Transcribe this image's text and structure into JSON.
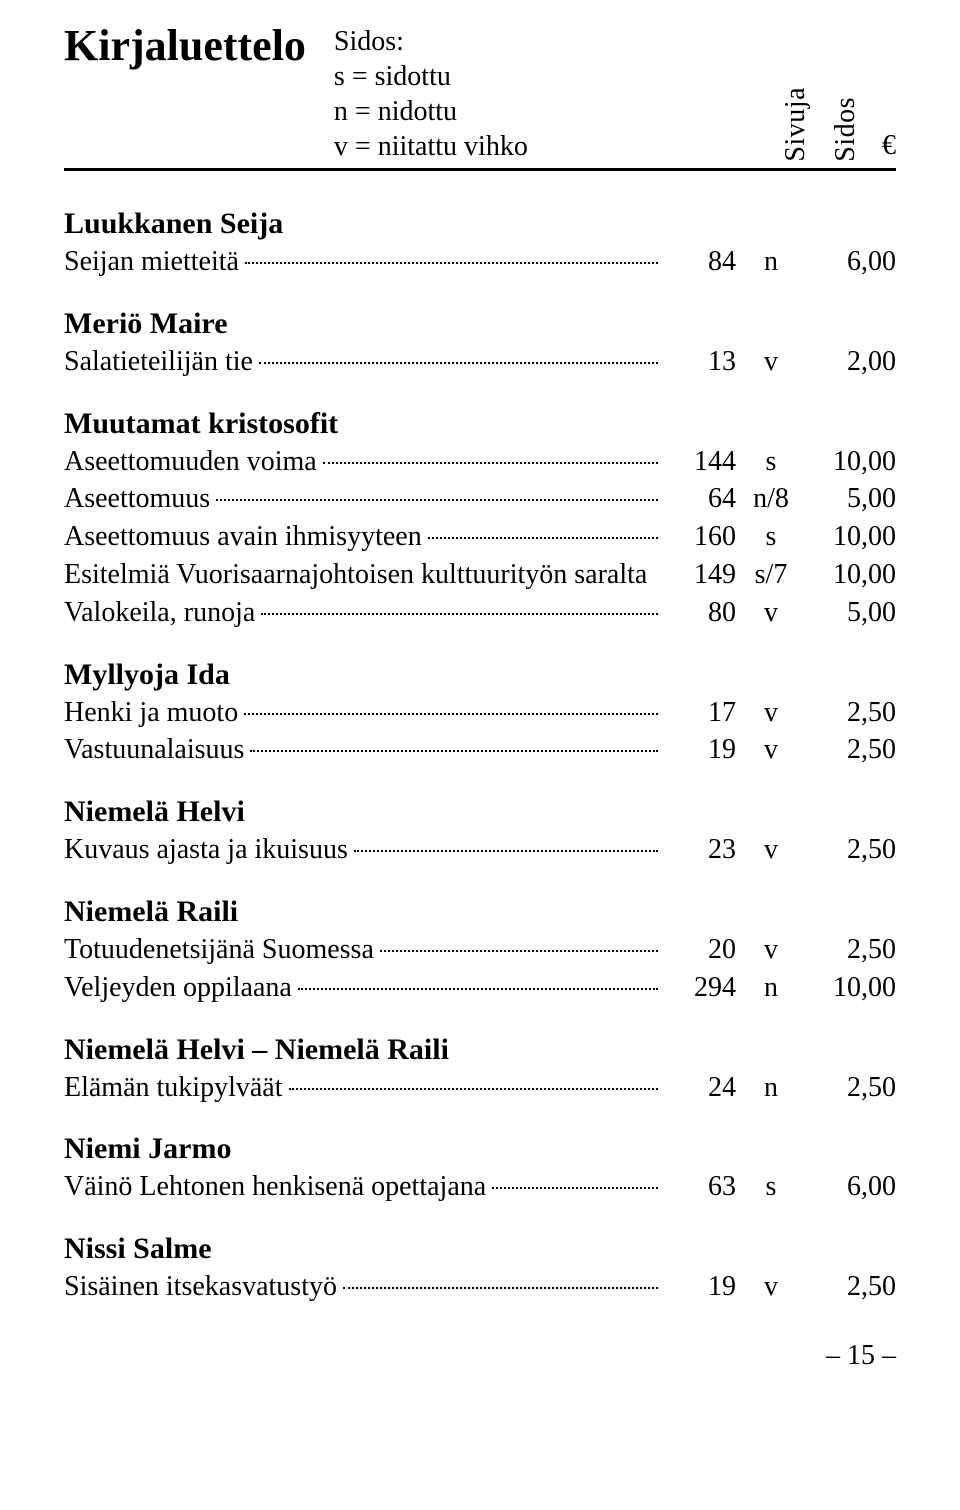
{
  "header": {
    "title": "Kirjaluettelo",
    "legend_heading": "Sidos:",
    "legend_lines": [
      "s = sidottu",
      "n = nidottu",
      "v = niitattu vihko"
    ],
    "columns": {
      "sivuja": "Sivuja",
      "sidos": "Sidos",
      "euro": "€"
    }
  },
  "groups": [
    {
      "name": "Luukkanen Seija",
      "entries": [
        {
          "title": "Seijan mietteitä",
          "sivuja": "84",
          "sidos": "n",
          "price": "6,00"
        }
      ]
    },
    {
      "name": "Meriö Maire",
      "entries": [
        {
          "title": "Salatieteilijän tie",
          "sivuja": "13",
          "sidos": "v",
          "price": "2,00"
        }
      ]
    },
    {
      "name": "Muutamat kristosofit",
      "entries": [
        {
          "title": "Aseettomuuden voima",
          "sivuja": "144",
          "sidos": "s",
          "price": "10,00"
        },
        {
          "title": "Aseettomuus",
          "sivuja": "64",
          "sidos": "n/8",
          "price": "5,00"
        },
        {
          "title": "Aseettomuus avain ihmisyyteen",
          "sivuja": "160",
          "sidos": "s",
          "price": "10,00"
        },
        {
          "title": "Esitelmiä Vuorisaarnajohtoisen kulttuurityön saralta",
          "sivuja": "149",
          "sidos": "s/7",
          "price": "10,00",
          "noleader": true
        },
        {
          "title": "Valokeila, runoja",
          "sivuja": "80",
          "sidos": "v",
          "price": "5,00"
        }
      ]
    },
    {
      "name": "Myllyoja Ida",
      "entries": [
        {
          "title": "Henki ja muoto",
          "sivuja": "17",
          "sidos": "v",
          "price": "2,50"
        },
        {
          "title": "Vastuunalaisuus",
          "sivuja": "19",
          "sidos": "v",
          "price": "2,50"
        }
      ]
    },
    {
      "name": "Niemelä Helvi",
      "entries": [
        {
          "title": "Kuvaus ajasta ja ikuisuus",
          "sivuja": "23",
          "sidos": "v",
          "price": "2,50"
        }
      ]
    },
    {
      "name": "Niemelä Raili",
      "entries": [
        {
          "title": "Totuudenetsijänä Suomessa",
          "sivuja": "20",
          "sidos": "v",
          "price": "2,50"
        },
        {
          "title": "Veljeyden oppilaana",
          "sivuja": "294",
          "sidos": "n",
          "price": "10,00"
        }
      ]
    },
    {
      "name": "Niemelä Helvi – Niemelä Raili",
      "entries": [
        {
          "title": "Elämän tukipylväät",
          "sivuja": "24",
          "sidos": "n",
          "price": "2,50"
        }
      ]
    },
    {
      "name": "Niemi Jarmo",
      "entries": [
        {
          "title": "Väinö Lehtonen henkisenä opettajana",
          "sivuja": "63",
          "sidos": "s",
          "price": "6,00"
        }
      ]
    },
    {
      "name": "Nissi Salme",
      "entries": [
        {
          "title": "Sisäinen itsekasvatustyö",
          "sivuja": "19",
          "sidos": "v",
          "price": "2,50"
        }
      ]
    }
  ],
  "page_number": "– 15 –"
}
